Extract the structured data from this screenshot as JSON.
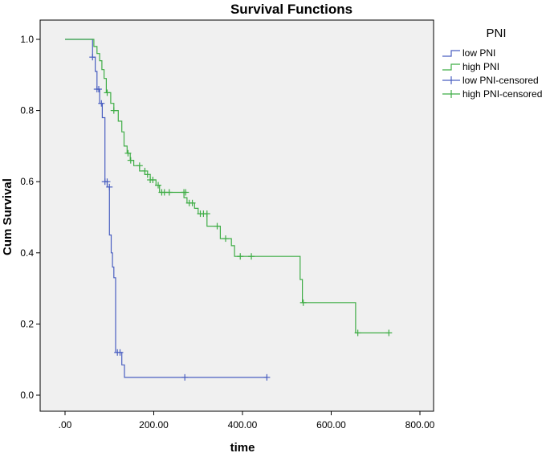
{
  "chart_data": {
    "type": "line",
    "title": "Survival Functions",
    "xlabel": "time",
    "ylabel": "Cum Survival",
    "xlim": [
      0,
      800
    ],
    "ylim": [
      0,
      1.0
    ],
    "x_ticks": [
      ".00",
      "200.00",
      "400.00",
      "600.00",
      "800.00"
    ],
    "x_tick_values": [
      0,
      200,
      400,
      600,
      800
    ],
    "y_ticks": [
      "0.0",
      "0.2",
      "0.4",
      "0.6",
      "0.8",
      "1.0"
    ],
    "y_tick_values": [
      0.0,
      0.2,
      0.4,
      0.6,
      0.8,
      1.0
    ],
    "grid": false,
    "legend_placement": "right",
    "legend": {
      "title": "PNI",
      "entries": [
        "low PNI",
        "high PNI",
        "low PNI-censored",
        "high PNI-censored"
      ]
    },
    "series": [
      {
        "name": "low PNI",
        "color": "#4a5fc1",
        "steps": [
          [
            0,
            1.0
          ],
          [
            62,
            1.0
          ],
          [
            62,
            0.95
          ],
          [
            68,
            0.95
          ],
          [
            68,
            0.91
          ],
          [
            72,
            0.91
          ],
          [
            72,
            0.86
          ],
          [
            78,
            0.86
          ],
          [
            78,
            0.82
          ],
          [
            84,
            0.82
          ],
          [
            84,
            0.78
          ],
          [
            90,
            0.78
          ],
          [
            90,
            0.6
          ],
          [
            95,
            0.6
          ],
          [
            95,
            0.585
          ],
          [
            100,
            0.585
          ],
          [
            100,
            0.45
          ],
          [
            104,
            0.45
          ],
          [
            104,
            0.4
          ],
          [
            107,
            0.4
          ],
          [
            107,
            0.36
          ],
          [
            110,
            0.36
          ],
          [
            110,
            0.33
          ],
          [
            114,
            0.33
          ],
          [
            114,
            0.12
          ],
          [
            120,
            0.12
          ],
          [
            120,
            0.12
          ],
          [
            128,
            0.12
          ],
          [
            128,
            0.085
          ],
          [
            134,
            0.085
          ],
          [
            134,
            0.05
          ],
          [
            455,
            0.05
          ]
        ],
        "censored": [
          [
            62,
            0.95
          ],
          [
            72,
            0.86
          ],
          [
            76,
            0.86
          ],
          [
            82,
            0.82
          ],
          [
            90,
            0.6
          ],
          [
            95,
            0.6
          ],
          [
            100,
            0.585
          ],
          [
            118,
            0.12
          ],
          [
            124,
            0.12
          ],
          [
            270,
            0.05
          ],
          [
            455,
            0.05
          ]
        ]
      },
      {
        "name": "high PNI",
        "color": "#3fad46",
        "steps": [
          [
            0,
            1.0
          ],
          [
            65,
            1.0
          ],
          [
            65,
            0.98
          ],
          [
            72,
            0.98
          ],
          [
            72,
            0.96
          ],
          [
            78,
            0.96
          ],
          [
            78,
            0.94
          ],
          [
            83,
            0.94
          ],
          [
            83,
            0.915
          ],
          [
            88,
            0.915
          ],
          [
            88,
            0.89
          ],
          [
            93,
            0.89
          ],
          [
            93,
            0.85
          ],
          [
            103,
            0.85
          ],
          [
            103,
            0.82
          ],
          [
            110,
            0.82
          ],
          [
            110,
            0.8
          ],
          [
            120,
            0.8
          ],
          [
            120,
            0.77
          ],
          [
            128,
            0.77
          ],
          [
            128,
            0.74
          ],
          [
            133,
            0.74
          ],
          [
            133,
            0.7
          ],
          [
            140,
            0.7
          ],
          [
            140,
            0.68
          ],
          [
            147,
            0.68
          ],
          [
            147,
            0.66
          ],
          [
            155,
            0.66
          ],
          [
            155,
            0.645
          ],
          [
            168,
            0.645
          ],
          [
            168,
            0.63
          ],
          [
            180,
            0.63
          ],
          [
            180,
            0.62
          ],
          [
            192,
            0.62
          ],
          [
            192,
            0.605
          ],
          [
            205,
            0.605
          ],
          [
            205,
            0.59
          ],
          [
            213,
            0.59
          ],
          [
            213,
            0.57
          ],
          [
            268,
            0.57
          ],
          [
            268,
            0.555
          ],
          [
            275,
            0.555
          ],
          [
            275,
            0.54
          ],
          [
            292,
            0.54
          ],
          [
            292,
            0.525
          ],
          [
            300,
            0.525
          ],
          [
            300,
            0.51
          ],
          [
            320,
            0.51
          ],
          [
            320,
            0.475
          ],
          [
            350,
            0.475
          ],
          [
            350,
            0.44
          ],
          [
            375,
            0.44
          ],
          [
            375,
            0.42
          ],
          [
            382,
            0.42
          ],
          [
            382,
            0.39
          ],
          [
            530,
            0.39
          ],
          [
            530,
            0.325
          ],
          [
            535,
            0.325
          ],
          [
            535,
            0.26
          ],
          [
            655,
            0.26
          ],
          [
            655,
            0.175
          ],
          [
            730,
            0.175
          ]
        ],
        "censored": [
          [
            95,
            0.85
          ],
          [
            110,
            0.8
          ],
          [
            142,
            0.68
          ],
          [
            148,
            0.66
          ],
          [
            168,
            0.645
          ],
          [
            180,
            0.63
          ],
          [
            186,
            0.62
          ],
          [
            192,
            0.605
          ],
          [
            198,
            0.605
          ],
          [
            210,
            0.59
          ],
          [
            218,
            0.57
          ],
          [
            224,
            0.57
          ],
          [
            235,
            0.57
          ],
          [
            268,
            0.57
          ],
          [
            272,
            0.57
          ],
          [
            280,
            0.54
          ],
          [
            287,
            0.54
          ],
          [
            305,
            0.51
          ],
          [
            312,
            0.51
          ],
          [
            320,
            0.51
          ],
          [
            343,
            0.475
          ],
          [
            362,
            0.44
          ],
          [
            395,
            0.39
          ],
          [
            420,
            0.39
          ],
          [
            537,
            0.26
          ],
          [
            660,
            0.175
          ],
          [
            730,
            0.175
          ]
        ]
      }
    ]
  }
}
